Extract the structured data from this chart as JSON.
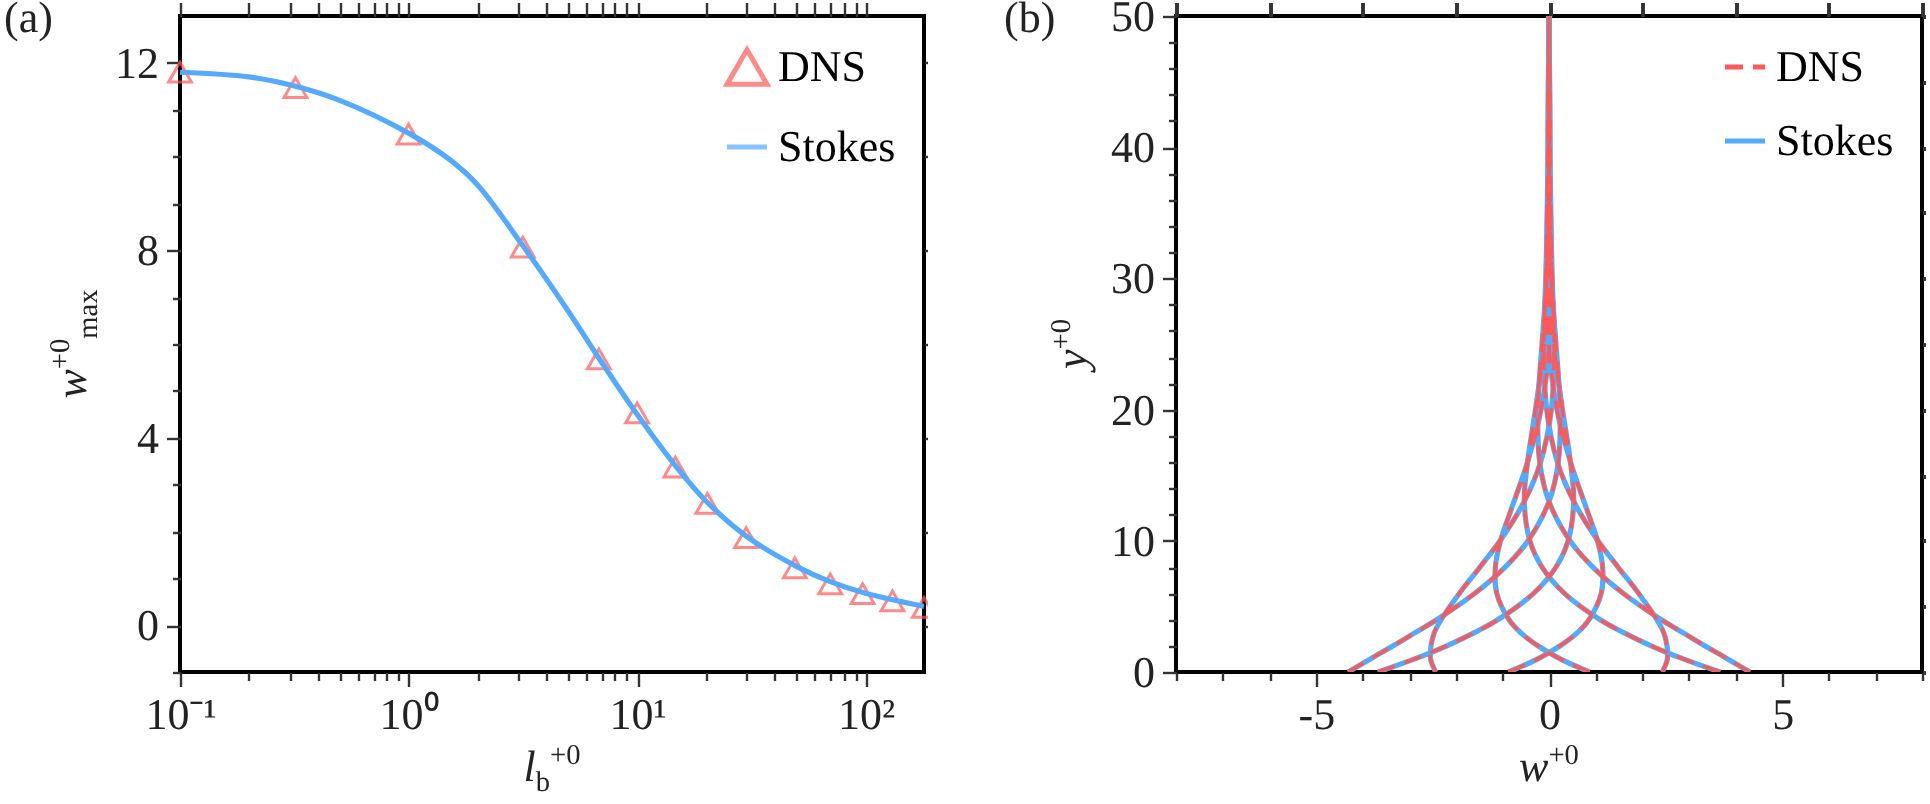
{
  "chart_data": [
    {
      "type": "scatter",
      "title": "(a)",
      "xlabel": "l$_{b}$$^{+0}$",
      "ylabel": "w$^{+0}$$_{max}$",
      "log": "x",
      "legend": "top right",
      "grid": false,
      "xlim": [
        0.1,
        180
      ],
      "ylim": [
        -1,
        13
      ],
      "xticks": [
        {
          "value": 0.1,
          "label": "10⁻¹"
        },
        {
          "value": 0.2,
          "label": null
        },
        {
          "value": 0.3,
          "label": null
        },
        {
          "value": 0.4,
          "label": null
        },
        {
          "value": 0.5,
          "label": null
        },
        {
          "value": 0.6,
          "label": null
        },
        {
          "value": 0.7,
          "label": null
        },
        {
          "value": 0.8,
          "label": null
        },
        {
          "value": 0.9,
          "label": null
        },
        {
          "value": 1,
          "label": "10⁰"
        },
        {
          "value": 2,
          "label": null
        },
        {
          "value": 3,
          "label": null
        },
        {
          "value": 4,
          "label": null
        },
        {
          "value": 5,
          "label": null
        },
        {
          "value": 6,
          "label": null
        },
        {
          "value": 7,
          "label": null
        },
        {
          "value": 8,
          "label": null
        },
        {
          "value": 9,
          "label": null
        },
        {
          "value": 10,
          "label": "10¹"
        },
        {
          "value": 20,
          "label": null
        },
        {
          "value": 30,
          "label": null
        },
        {
          "value": 40,
          "label": null
        },
        {
          "value": 50,
          "label": null
        },
        {
          "value": 60,
          "label": null
        },
        {
          "value": 70,
          "label": null
        },
        {
          "value": 80,
          "label": null
        },
        {
          "value": 90,
          "label": null
        },
        {
          "value": 100,
          "label": "10²"
        }
      ],
      "yticks": [
        {
          "value": -1,
          "label": null
        },
        0,
        {
          "value": 1,
          "label": null
        },
        {
          "value": 2,
          "label": null
        },
        {
          "value": 3,
          "label": null
        },
        4,
        {
          "value": 5,
          "label": null
        },
        {
          "value": 6,
          "label": null
        },
        {
          "value": 7,
          "label": null
        },
        8,
        {
          "value": 9,
          "label": null
        },
        {
          "value": 10,
          "label": null
        },
        {
          "value": 11,
          "label": null
        },
        12
      ],
      "series": [
        {
          "name": "DNS",
          "marker": "triangle",
          "color": "#ff5a5a",
          "x": [
            0.1,
            0.32,
            1,
            3.16,
            6.8,
            10,
            14.7,
            20.3,
            30,
            49,
            70,
            97,
            131,
            180
          ],
          "values": [
            11.8,
            11.47,
            10.48,
            8.07,
            5.68,
            4.53,
            3.37,
            2.6,
            1.87,
            1.22,
            0.88,
            0.67,
            0.52,
            0.38
          ]
        },
        {
          "name": "Stokes",
          "type": "line",
          "line_style": "solid",
          "color": "#55aaff",
          "x": [
            0.1,
            0.2,
            0.32,
            0.5,
            1,
            1.5,
            2,
            3.16,
            5,
            6.8,
            10,
            15,
            20,
            30,
            50,
            70,
            100,
            180
          ],
          "values": [
            11.8,
            11.7,
            11.5,
            11.2,
            10.5,
            9.95,
            9.4,
            8.1,
            6.7,
            5.7,
            4.5,
            3.35,
            2.65,
            1.9,
            1.25,
            0.93,
            0.68,
            0.4
          ]
        }
      ]
    },
    {
      "type": "line",
      "title": "(b)",
      "xlabel": "w$^{+0}$",
      "ylabel": "y$^{+0}$",
      "legend": "top right",
      "grid": false,
      "xlim": [
        -8,
        8
      ],
      "ylim": [
        0,
        50
      ],
      "xticks": [
        {
          "value": -8,
          "label": null
        },
        {
          "value": -7,
          "label": null
        },
        {
          "value": -6,
          "label": null
        },
        -5,
        {
          "value": -4,
          "label": null
        },
        {
          "value": -3,
          "label": null
        },
        {
          "value": -2,
          "label": null
        },
        {
          "value": -1,
          "label": null
        },
        0,
        {
          "value": 1,
          "label": null
        },
        {
          "value": 2,
          "label": null
        },
        {
          "value": 3,
          "label": null
        },
        {
          "value": 4,
          "label": null
        },
        5,
        {
          "value": 6,
          "label": null
        },
        {
          "value": 7,
          "label": null
        },
        {
          "value": 8,
          "label": null
        }
      ],
      "yticks": [
        0,
        {
          "value": 2,
          "label": null
        },
        {
          "value": 4,
          "label": null
        },
        {
          "value": 6,
          "label": null
        },
        {
          "value": 8,
          "label": null
        },
        10,
        {
          "value": 12,
          "label": null
        },
        {
          "value": 14,
          "label": null
        },
        {
          "value": 16,
          "label": null
        },
        {
          "value": 18,
          "label": null
        },
        20,
        {
          "value": 22,
          "label": null
        },
        {
          "value": 24,
          "label": null
        },
        {
          "value": 26,
          "label": null
        },
        {
          "value": 28,
          "label": null
        },
        30,
        {
          "value": 32,
          "label": null
        },
        {
          "value": 34,
          "label": null
        },
        {
          "value": 36,
          "label": null
        },
        {
          "value": 38,
          "label": null
        },
        40,
        {
          "value": 42,
          "label": null
        },
        {
          "value": 44,
          "label": null
        },
        {
          "value": 46,
          "label": null
        },
        {
          "value": 48,
          "label": null
        },
        50
      ],
      "series": [
        {
          "name": "DNS",
          "line_style": "dashed",
          "color": "#ff5a5a",
          "x": [
            4.31,
            3.83,
            3.34,
            2.87,
            2.4,
            1.59,
            0.94,
            0.45,
            0.0,
            -0.2,
            -0.24,
            -0.15,
            -0.05,
            0.01,
            0.0
          ],
          "values": [
            0,
            1,
            2,
            3,
            4,
            6,
            8,
            10,
            13,
            16,
            20,
            25,
            30,
            40,
            50
          ]
        },
        {
          "line_style": "dashed",
          "color": "#ff5a5a",
          "x": [
            2.43,
            2.54,
            2.53,
            2.46,
            2.31,
            1.92,
            1.48,
            1.05,
            0.53,
            0.18,
            -0.05,
            -0.11,
            -0.07,
            0.0,
            0.0
          ],
          "values": [
            0,
            1,
            2,
            3,
            4,
            6,
            8,
            10,
            13,
            16,
            20,
            25,
            30,
            40,
            50
          ]
        },
        {
          "line_style": "dashed",
          "color": "#ff5a5a",
          "x": [
            -0.87,
            -0.24,
            0.24,
            0.61,
            0.86,
            1.12,
            1.15,
            1.04,
            0.75,
            0.46,
            0.17,
            -0.01,
            -0.05,
            -0.02,
            0.0
          ],
          "values": [
            0,
            1,
            2,
            3,
            4,
            6,
            8,
            10,
            13,
            16,
            20,
            25,
            30,
            40,
            50
          ]
        },
        {
          "line_style": "dashed",
          "color": "#ff5a5a",
          "x": [
            -3.67,
            -2.88,
            -2.19,
            -1.6,
            -1.09,
            -0.33,
            0.15,
            0.41,
            0.53,
            0.46,
            0.29,
            0.1,
            0.0,
            -0.02,
            0.0
          ],
          "values": [
            0,
            1,
            2,
            3,
            4,
            6,
            8,
            10,
            13,
            16,
            20,
            25,
            30,
            40,
            50
          ]
        },
        {
          "line_style": "dashed",
          "color": "#ff5a5a",
          "x": [
            -4.31,
            -3.83,
            -3.34,
            -2.87,
            -2.4,
            -1.59,
            -0.94,
            -0.45,
            0.0,
            0.2,
            0.24,
            0.15,
            0.05,
            -0.01,
            0.0
          ],
          "values": [
            0,
            1,
            2,
            3,
            4,
            6,
            8,
            10,
            13,
            16,
            20,
            25,
            30,
            40,
            50
          ]
        },
        {
          "line_style": "dashed",
          "color": "#ff5a5a",
          "x": [
            -2.43,
            -2.54,
            -2.53,
            -2.46,
            -2.31,
            -1.92,
            -1.48,
            -1.05,
            -0.53,
            -0.18,
            0.05,
            0.11,
            0.07,
            0.0,
            0.0
          ],
          "values": [
            0,
            1,
            2,
            3,
            4,
            6,
            8,
            10,
            13,
            16,
            20,
            25,
            30,
            40,
            50
          ]
        },
        {
          "line_style": "dashed",
          "color": "#ff5a5a",
          "x": [
            0.87,
            0.24,
            -0.24,
            -0.61,
            -0.86,
            -1.12,
            -1.15,
            -1.04,
            -0.75,
            -0.46,
            -0.17,
            0.01,
            0.05,
            0.02,
            0.0
          ],
          "values": [
            0,
            1,
            2,
            3,
            4,
            6,
            8,
            10,
            13,
            16,
            20,
            25,
            30,
            40,
            50
          ]
        },
        {
          "line_style": "dashed",
          "color": "#ff5a5a",
          "x": [
            3.67,
            2.88,
            2.19,
            1.6,
            1.09,
            0.33,
            -0.15,
            -0.41,
            -0.53,
            -0.46,
            -0.29,
            -0.1,
            0.0,
            0.02,
            0.0
          ],
          "values": [
            0,
            1,
            2,
            3,
            4,
            6,
            8,
            10,
            13,
            16,
            20,
            25,
            30,
            40,
            50
          ]
        },
        {
          "name": "Stokes",
          "line_style": "solid",
          "color": "#55aaff",
          "x": [
            4.31,
            3.83,
            3.34,
            2.87,
            2.4,
            1.59,
            0.94,
            0.45,
            0.0,
            -0.2,
            -0.24,
            -0.15,
            -0.05,
            0.01,
            0.0
          ],
          "values": [
            0,
            1,
            2,
            3,
            4,
            6,
            8,
            10,
            13,
            16,
            20,
            25,
            30,
            40,
            50
          ]
        },
        {
          "line_style": "solid",
          "color": "#55aaff",
          "x": [
            2.43,
            2.54,
            2.53,
            2.46,
            2.31,
            1.92,
            1.48,
            1.05,
            0.53,
            0.18,
            -0.05,
            -0.11,
            -0.07,
            0.0,
            0.0
          ],
          "values": [
            0,
            1,
            2,
            3,
            4,
            6,
            8,
            10,
            13,
            16,
            20,
            25,
            30,
            40,
            50
          ]
        },
        {
          "line_style": "solid",
          "color": "#55aaff",
          "x": [
            -0.87,
            -0.24,
            0.24,
            0.61,
            0.86,
            1.12,
            1.15,
            1.04,
            0.75,
            0.46,
            0.17,
            -0.01,
            -0.05,
            -0.02,
            0.0
          ],
          "values": [
            0,
            1,
            2,
            3,
            4,
            6,
            8,
            10,
            13,
            16,
            20,
            25,
            30,
            40,
            50
          ]
        },
        {
          "line_style": "solid",
          "color": "#55aaff",
          "x": [
            -3.67,
            -2.88,
            -2.19,
            -1.6,
            -1.09,
            -0.33,
            0.15,
            0.41,
            0.53,
            0.46,
            0.29,
            0.1,
            0.0,
            -0.02,
            0.0
          ],
          "values": [
            0,
            1,
            2,
            3,
            4,
            6,
            8,
            10,
            13,
            16,
            20,
            25,
            30,
            40,
            50
          ]
        },
        {
          "line_style": "solid",
          "color": "#55aaff",
          "x": [
            -4.31,
            -3.83,
            -3.34,
            -2.87,
            -2.4,
            -1.59,
            -0.94,
            -0.45,
            0.0,
            0.2,
            0.24,
            0.15,
            0.05,
            -0.01,
            0.0
          ],
          "values": [
            0,
            1,
            2,
            3,
            4,
            6,
            8,
            10,
            13,
            16,
            20,
            25,
            30,
            40,
            50
          ]
        },
        {
          "line_style": "solid",
          "color": "#55aaff",
          "x": [
            -2.43,
            -2.54,
            -2.53,
            -2.46,
            -2.31,
            -1.92,
            -1.48,
            -1.05,
            -0.53,
            -0.18,
            0.05,
            0.11,
            0.07,
            0.0,
            0.0
          ],
          "values": [
            0,
            1,
            2,
            3,
            4,
            6,
            8,
            10,
            13,
            16,
            20,
            25,
            30,
            40,
            50
          ]
        },
        {
          "line_style": "solid",
          "color": "#55aaff",
          "x": [
            0.87,
            0.24,
            -0.24,
            -0.61,
            -0.86,
            -1.12,
            -1.15,
            -1.04,
            -0.75,
            -0.46,
            -0.17,
            0.01,
            0.05,
            0.02,
            0.0
          ],
          "values": [
            0,
            1,
            2,
            3,
            4,
            6,
            8,
            10,
            13,
            16,
            20,
            25,
            30,
            40,
            50
          ]
        },
        {
          "line_style": "solid",
          "color": "#55aaff",
          "x": [
            3.67,
            2.88,
            2.19,
            1.6,
            1.09,
            0.33,
            -0.15,
            -0.41,
            -0.53,
            -0.46,
            -0.29,
            -0.1,
            0.0,
            0.02,
            0.0
          ],
          "values": [
            0,
            1,
            2,
            3,
            4,
            6,
            8,
            10,
            13,
            16,
            20,
            25,
            30,
            40,
            50
          ]
        }
      ]
    }
  ]
}
